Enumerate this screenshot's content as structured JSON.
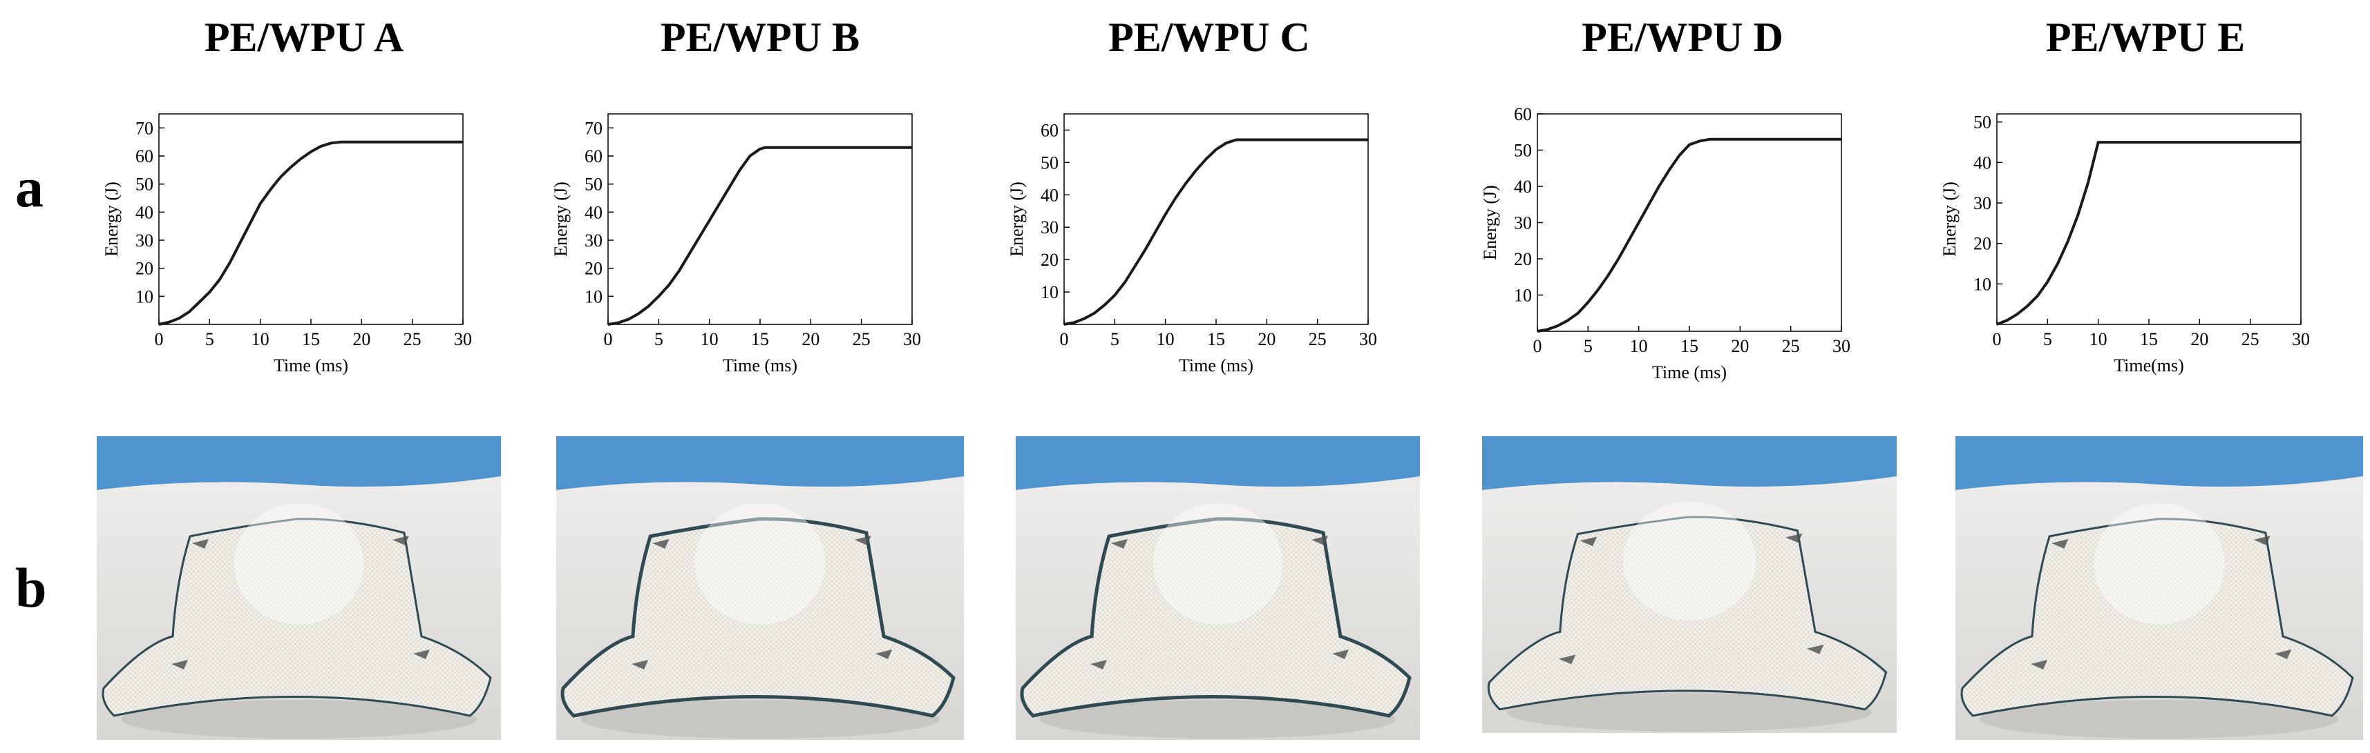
{
  "row_labels": {
    "a": "a",
    "b": "b"
  },
  "panels": [
    {
      "title": "PE/WPU A",
      "xlabel": "Time (ms)",
      "ylabel": "Energy (J)"
    },
    {
      "title": "PE/WPU B",
      "xlabel": "Time (ms)",
      "ylabel": "Energy (J)"
    },
    {
      "title": "PE/WPU C",
      "xlabel": "Time (ms)",
      "ylabel": "Energy (J)"
    },
    {
      "title": "PE/WPU D",
      "xlabel": "Time (ms)",
      "ylabel": "Energy (J)"
    },
    {
      "title": "PE/WPU E",
      "xlabel": "Time(ms)",
      "ylabel": "Energy (J)"
    }
  ],
  "chart_data": [
    {
      "type": "line",
      "title": "PE/WPU A",
      "xlabel": "Time (ms)",
      "ylabel": "Energy (J)",
      "xlim": [
        0,
        30
      ],
      "ylim": [
        0,
        75
      ],
      "xticks": [
        0,
        5,
        10,
        15,
        20,
        25,
        30
      ],
      "yticks": [
        10,
        20,
        30,
        40,
        50,
        60,
        70
      ],
      "x": [
        0,
        1,
        2,
        3,
        4,
        5,
        6,
        7,
        8,
        9,
        10,
        11,
        12,
        13,
        14,
        15,
        16,
        17,
        18,
        19,
        20,
        22,
        24,
        26,
        28,
        30
      ],
      "y": [
        0,
        0.8,
        2.2,
        4.5,
        8,
        11.5,
        16,
        22,
        29,
        36,
        43,
        48,
        52.5,
        56,
        59,
        61.5,
        63.5,
        64.6,
        65,
        65,
        65,
        65,
        65,
        65,
        65,
        65
      ]
    },
    {
      "type": "line",
      "title": "PE/WPU B",
      "xlabel": "Time (ms)",
      "ylabel": "Energy (J)",
      "xlim": [
        0,
        30
      ],
      "ylim": [
        0,
        75
      ],
      "xticks": [
        0,
        5,
        10,
        15,
        20,
        25,
        30
      ],
      "yticks": [
        10,
        20,
        30,
        40,
        50,
        60,
        70
      ],
      "x": [
        0,
        1,
        2,
        3,
        4,
        5,
        6,
        7,
        8,
        9,
        10,
        11,
        12,
        13,
        14,
        15,
        15.5,
        16,
        18,
        20,
        22,
        24,
        26,
        28,
        30
      ],
      "y": [
        0,
        0.6,
        1.8,
        3.8,
        6.5,
        10,
        14,
        19,
        25,
        31,
        37,
        43,
        49,
        55,
        60,
        62.5,
        63,
        63,
        63,
        63,
        63,
        63,
        63,
        63,
        63
      ]
    },
    {
      "type": "line",
      "title": "PE/WPU C",
      "xlabel": "Time (ms)",
      "ylabel": "Energy (J)",
      "xlim": [
        0,
        30
      ],
      "ylim": [
        0,
        65
      ],
      "xticks": [
        0,
        5,
        10,
        15,
        20,
        25,
        30
      ],
      "yticks": [
        10,
        20,
        30,
        40,
        50,
        60
      ],
      "x": [
        0,
        1,
        2,
        3,
        4,
        5,
        6,
        7,
        8,
        9,
        10,
        11,
        12,
        13,
        14,
        15,
        16,
        17,
        18,
        20,
        22,
        24,
        26,
        28,
        30
      ],
      "y": [
        0,
        0.6,
        1.8,
        3.5,
        6,
        9,
        13,
        18,
        23,
        28.5,
        34,
        39,
        43.5,
        47.5,
        51,
        54,
        56,
        57,
        57,
        57,
        57,
        57,
        57,
        57,
        57
      ]
    },
    {
      "type": "line",
      "title": "PE/WPU D",
      "xlabel": "Time (ms)",
      "ylabel": "Energy (J)",
      "xlim": [
        0,
        30
      ],
      "ylim": [
        0,
        60
      ],
      "xticks": [
        0,
        5,
        10,
        15,
        20,
        25,
        30
      ],
      "yticks": [
        10,
        20,
        30,
        40,
        50,
        60
      ],
      "x": [
        0,
        1,
        2,
        3,
        4,
        5,
        6,
        7,
        8,
        9,
        10,
        11,
        12,
        13,
        14,
        15,
        16,
        17,
        18,
        20,
        22,
        24,
        26,
        28,
        30
      ],
      "y": [
        0,
        0.5,
        1.5,
        3,
        5,
        8,
        11.5,
        15.5,
        20,
        25,
        30,
        35,
        40,
        44.5,
        48.5,
        51.5,
        52.5,
        53,
        53,
        53,
        53,
        53,
        53,
        53,
        53
      ]
    },
    {
      "type": "line",
      "title": "PE/WPU E",
      "xlabel": "Time(ms)",
      "ylabel": "Energy (J)",
      "xlim": [
        0,
        30
      ],
      "ylim": [
        0,
        52
      ],
      "xticks": [
        0,
        5,
        10,
        15,
        20,
        25,
        30
      ],
      "yticks": [
        10,
        20,
        30,
        40,
        50
      ],
      "x": [
        0,
        1,
        2,
        3,
        4,
        5,
        6,
        7,
        8,
        9,
        9.5,
        10,
        12,
        14,
        16,
        18,
        20,
        22,
        24,
        26,
        28,
        30
      ],
      "y": [
        0,
        1,
        2.5,
        4.5,
        7,
        10.5,
        15,
        20.5,
        27,
        35,
        40,
        45,
        45,
        45,
        45,
        45,
        45,
        45,
        45,
        45,
        45,
        45
      ]
    }
  ],
  "colors": {
    "line": "#1a1a1a",
    "photo_backdrop": "#4f93cf",
    "photo_table": "#d8d6d3",
    "fabric": "#f3f1ec",
    "fabric_edge": "#2f4a52"
  }
}
